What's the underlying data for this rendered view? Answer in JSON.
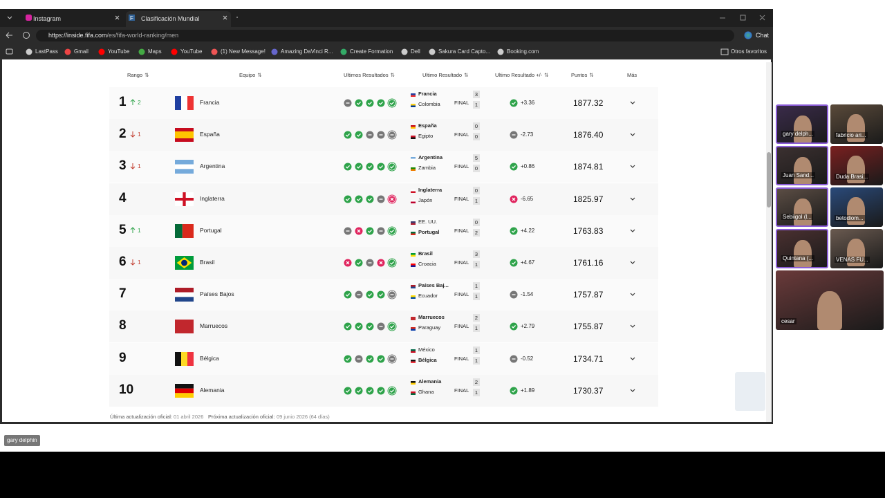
{
  "browser": {
    "tabs": [
      "Instagram",
      "Clasificación Mundial FIFA/Coca-C"
    ],
    "url_host": "https://inside.fifa.com",
    "url_path": "/es/fifa-world-ranking/men",
    "chat": "Chat",
    "bookmarks": [
      "LastPass",
      "Gmail",
      "YouTube",
      "Maps",
      "YouTube",
      "(1) New Message!",
      "Amazing DaVinci R...",
      "Create Formation",
      "Dell",
      "Sakura Card Capto...",
      "Booking.com"
    ],
    "other_bookmarks": "Otros favoritos"
  },
  "table": {
    "headers": [
      "Rango",
      "Equipo",
      "Ultimos Resultados",
      "Ultimo Resultado",
      "Ultimo Resultado +/-",
      "Puntos",
      "Más"
    ],
    "rows": [
      {
        "rank": "1",
        "move": "up",
        "move_by": "2",
        "team": "Francia",
        "form": [
          "d",
          "w",
          "w",
          "w",
          "w"
        ],
        "home": "Francia",
        "home_score": "3",
        "away": "Colombia",
        "away_score": "1",
        "status": "FINAL",
        "bold_side": "home",
        "diff": "+3.36",
        "diff_kind": "w",
        "points": "1877.32"
      },
      {
        "rank": "2",
        "move": "down",
        "move_by": "1",
        "team": "España",
        "form": [
          "w",
          "w",
          "d",
          "d",
          "d"
        ],
        "home": "España",
        "home_score": "0",
        "away": "Egipto",
        "away_score": "0",
        "status": "FINAL",
        "bold_side": "home",
        "diff": "-2.73",
        "diff_kind": "d",
        "points": "1876.40"
      },
      {
        "rank": "3",
        "move": "down",
        "move_by": "1",
        "team": "Argentina",
        "form": [
          "w",
          "w",
          "w",
          "w",
          "w"
        ],
        "home": "Argentina",
        "home_score": "5",
        "away": "Zambia",
        "away_score": "0",
        "status": "FINAL",
        "bold_side": "home",
        "diff": "+0.86",
        "diff_kind": "w",
        "points": "1874.81"
      },
      {
        "rank": "4",
        "move": "none",
        "move_by": "",
        "team": "Inglaterra",
        "form": [
          "w",
          "w",
          "w",
          "d",
          "l"
        ],
        "home": "Inglaterra",
        "home_score": "0",
        "away": "Japón",
        "away_score": "1",
        "status": "FINAL",
        "bold_side": "home",
        "diff": "-6.65",
        "diff_kind": "l",
        "points": "1825.97"
      },
      {
        "rank": "5",
        "move": "up",
        "move_by": "1",
        "team": "Portugal",
        "form": [
          "d",
          "l",
          "w",
          "d",
          "w"
        ],
        "home": "EE. UU.",
        "home_score": "0",
        "away": "Portugal",
        "away_score": "2",
        "status": "FINAL",
        "bold_side": "away",
        "diff": "+4.22",
        "diff_kind": "w",
        "points": "1763.83"
      },
      {
        "rank": "6",
        "move": "down",
        "move_by": "1",
        "team": "Brasil",
        "form": [
          "l",
          "w",
          "d",
          "l",
          "w"
        ],
        "home": "Brasil",
        "home_score": "3",
        "away": "Croacia",
        "away_score": "1",
        "status": "FINAL",
        "bold_side": "home",
        "diff": "+4.67",
        "diff_kind": "w",
        "points": "1761.16"
      },
      {
        "rank": "7",
        "move": "none",
        "move_by": "",
        "team": "Países Bajos",
        "form": [
          "w",
          "d",
          "w",
          "w",
          "d"
        ],
        "home": "Países Baj...",
        "home_score": "1",
        "away": "Ecuador",
        "away_score": "1",
        "status": "FINAL",
        "bold_side": "home",
        "diff": "-1.54",
        "diff_kind": "d",
        "points": "1757.87"
      },
      {
        "rank": "8",
        "move": "none",
        "move_by": "",
        "team": "Marruecos",
        "form": [
          "w",
          "w",
          "w",
          "d",
          "w"
        ],
        "home": "Marruecos",
        "home_score": "2",
        "away": "Paraguay",
        "away_score": "1",
        "status": "FINAL",
        "bold_side": "home",
        "diff": "+2.79",
        "diff_kind": "w",
        "points": "1755.87"
      },
      {
        "rank": "9",
        "move": "none",
        "move_by": "",
        "team": "Bélgica",
        "form": [
          "w",
          "d",
          "w",
          "w",
          "d"
        ],
        "home": "México",
        "home_score": "1",
        "away": "Bélgica",
        "away_score": "1",
        "status": "FINAL",
        "bold_side": "away",
        "diff": "-0.52",
        "diff_kind": "d",
        "points": "1734.71"
      },
      {
        "rank": "10",
        "move": "none",
        "move_by": "",
        "team": "Alemania",
        "form": [
          "w",
          "w",
          "w",
          "w",
          "w"
        ],
        "home": "Alemania",
        "home_score": "2",
        "away": "Ghana",
        "away_score": "1",
        "status": "FINAL",
        "bold_side": "home",
        "diff": "+1.89",
        "diff_kind": "w",
        "points": "1730.37"
      }
    ]
  },
  "footer": {
    "last_label": "Última actualización oficial:",
    "last_date": "01 abril 2026",
    "next_label": "Próxima actualización oficial:",
    "next_date": "09 junio 2026 (64 días)"
  },
  "participants": [
    "gary delph...",
    "fabricio ari...",
    "Juan Sand...",
    "Duda Brasi...",
    "Sebiigol (l...",
    "betodiom...",
    "Quintana (...",
    "VENAS FU...",
    "cesar"
  ],
  "speaker_label": "gary delphin"
}
